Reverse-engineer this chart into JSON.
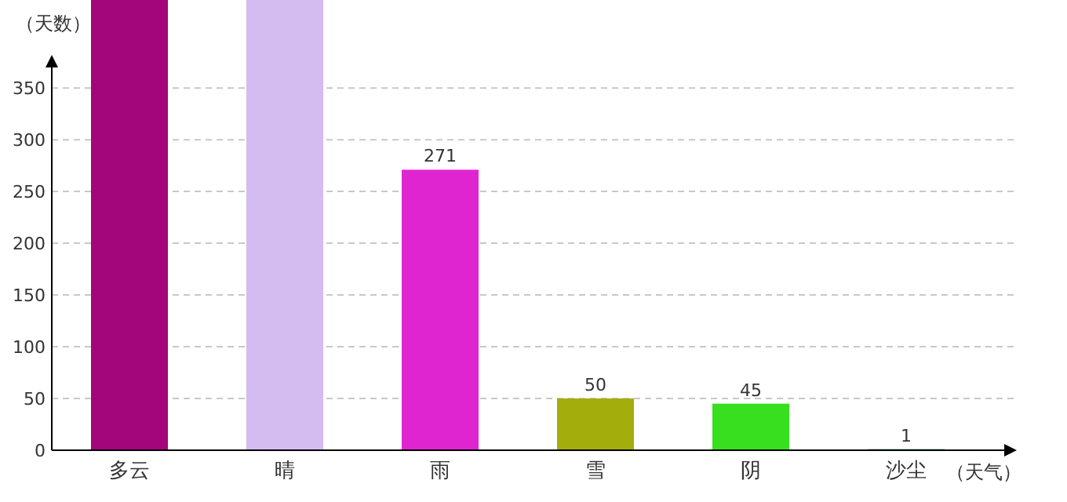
{
  "chart_data": {
    "type": "bar",
    "xlabel": "（天气）",
    "ylabel": "（天数）",
    "categories": [
      "多云",
      "晴",
      "雨",
      "雪",
      "阴",
      "沙尘"
    ],
    "values": [
      435,
      435,
      271,
      50,
      45,
      1
    ],
    "colors": [
      "#a3057b",
      "#d4bbf0",
      "#de25d0",
      "#a3ae0c",
      "#37df1f",
      "#1e6b1e"
    ],
    "value_labels": [
      null,
      null,
      "271",
      "50",
      "45",
      "1"
    ],
    "ylim": [
      0,
      435
    ],
    "yticks": [
      0,
      50,
      100,
      150,
      200,
      250,
      300,
      350
    ],
    "grid": "y"
  }
}
